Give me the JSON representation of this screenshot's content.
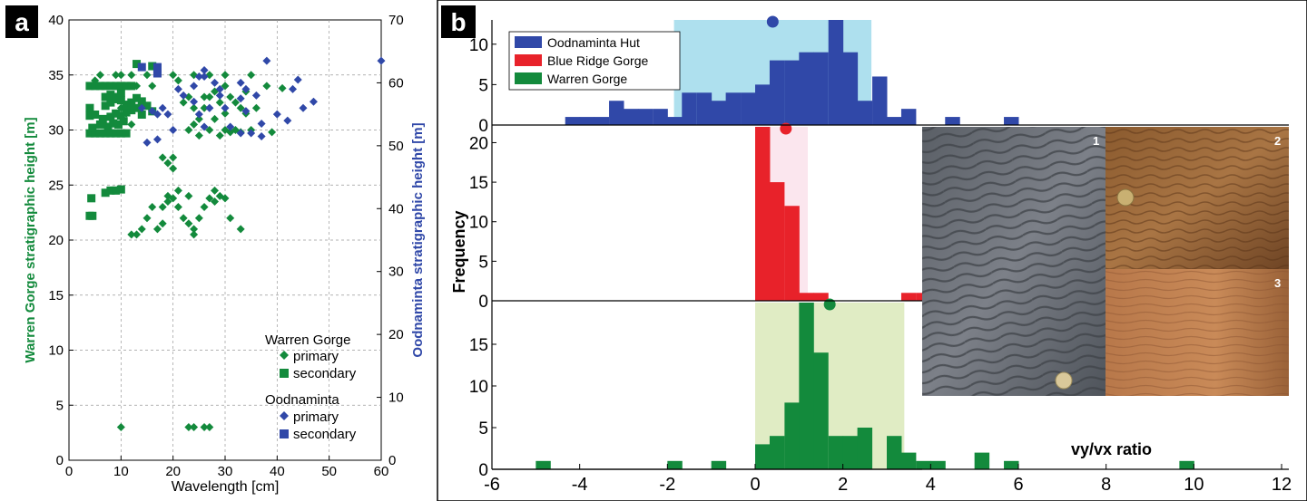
{
  "panel_a": {
    "label": "a",
    "xlabel": "Wavelength [cm]",
    "ylabel_left": "Warren Gorge stratigraphic height [m]",
    "ylabel_right": "Oodnaminta stratigraphic height [m]",
    "xticks": [
      "0",
      "10",
      "20",
      "30",
      "40",
      "50",
      "60"
    ],
    "yticks_left": [
      "0",
      "5",
      "10",
      "15",
      "20",
      "25",
      "30",
      "35",
      "40"
    ],
    "yticks_right": [
      "0",
      "10",
      "20",
      "30",
      "40",
      "50",
      "60",
      "70"
    ],
    "legend": {
      "group1": "Warren Gorge",
      "group2": "Oodnaminta",
      "primary": "primary",
      "secondary": "secondary"
    }
  },
  "panel_b": {
    "label": "b",
    "ylabel": "Frequency",
    "xlabel": "vy/vx ratio",
    "xticks": [
      "-6",
      "-4",
      "-2",
      "0",
      "2",
      "4",
      "6",
      "8",
      "10",
      "12"
    ],
    "legend": [
      "Oodnaminta Hut",
      "Blue Ridge Gorge",
      "Warren Gorge"
    ],
    "photo_labels": [
      "1",
      "2",
      "3"
    ]
  },
  "colors": {
    "green": "#138a3c",
    "blue": "#3048a8",
    "red": "#e8222a",
    "light_blue": "#aee0ee",
    "light_pink": "#fbe6ee",
    "light_green": "#e0ecc4"
  },
  "chart_data": [
    {
      "type": "scatter",
      "xlabel": "Wavelength [cm]",
      "ylabel": "Warren Gorge stratigraphic height [m]",
      "y2label": "Oodnaminta stratigraphic height [m]",
      "xlim": [
        0,
        60
      ],
      "ylim": [
        0,
        40
      ],
      "y2lim": [
        0,
        70
      ],
      "grid": true,
      "legend_position": "bottom-right",
      "series": [
        {
          "name": "primary",
          "group": "Warren Gorge",
          "marker": "diamond",
          "axis": "left",
          "points": [
            [
              10,
              3
            ],
            [
              23,
              3
            ],
            [
              24,
              3
            ],
            [
              26,
              3
            ],
            [
              27,
              3
            ],
            [
              12,
              20.5
            ],
            [
              13,
              20.5
            ],
            [
              14,
              21
            ],
            [
              17,
              21
            ],
            [
              18,
              21.5
            ],
            [
              15,
              22
            ],
            [
              16,
              23
            ],
            [
              18,
              23
            ],
            [
              19,
              23.5
            ],
            [
              20,
              23.8
            ],
            [
              21,
              23
            ],
            [
              22,
              22
            ],
            [
              23,
              21.5
            ],
            [
              24,
              21
            ],
            [
              24,
              20.5
            ],
            [
              25,
              22
            ],
            [
              26,
              23
            ],
            [
              28,
              23.5
            ],
            [
              29,
              24
            ],
            [
              30,
              23.8
            ],
            [
              31,
              22
            ],
            [
              33,
              21
            ],
            [
              19,
              24
            ],
            [
              21,
              24.5
            ],
            [
              23,
              24
            ],
            [
              27,
              23.8
            ],
            [
              28,
              24.5
            ],
            [
              18,
              27.5
            ],
            [
              19,
              27
            ],
            [
              20,
              26.5
            ],
            [
              20,
              27.5
            ],
            [
              23,
              30
            ],
            [
              24,
              30.5
            ],
            [
              25,
              29.5
            ],
            [
              27,
              30
            ],
            [
              28,
              31
            ],
            [
              29,
              29.5
            ],
            [
              30,
              30
            ],
            [
              31,
              29.8
            ],
            [
              32,
              30
            ],
            [
              33,
              29.8
            ],
            [
              35,
              30
            ],
            [
              39,
              29.8
            ],
            [
              25,
              31
            ],
            [
              26,
              32
            ],
            [
              27,
              33
            ],
            [
              29,
              32.5
            ],
            [
              30,
              31.5
            ],
            [
              31,
              33
            ],
            [
              33,
              32
            ],
            [
              34,
              31.5
            ],
            [
              22,
              32.5
            ],
            [
              23,
              33
            ],
            [
              24,
              32
            ],
            [
              26,
              33
            ],
            [
              28,
              33.5
            ],
            [
              30,
              34
            ],
            [
              32,
              32.5
            ],
            [
              34,
              33.5
            ],
            [
              36,
              32
            ],
            [
              38,
              34
            ],
            [
              41,
              33.8
            ],
            [
              35,
              35
            ],
            [
              27,
              35
            ],
            [
              30,
              35
            ],
            [
              24,
              35
            ],
            [
              21,
              34.5
            ],
            [
              20,
              35
            ],
            [
              16,
              34
            ],
            [
              15,
              35
            ],
            [
              13,
              34
            ],
            [
              12,
              35
            ],
            [
              10,
              35
            ],
            [
              9,
              35
            ],
            [
              8,
              34
            ],
            [
              6,
              35
            ],
            [
              5,
              34.5
            ],
            [
              10,
              32
            ],
            [
              11,
              31.5
            ],
            [
              12,
              30.5
            ]
          ]
        },
        {
          "name": "secondary",
          "group": "Warren Gorge",
          "marker": "square",
          "axis": "left",
          "points": [
            [
              4,
              22.2
            ],
            [
              4.5,
              22.2
            ],
            [
              4.3,
              23.8
            ],
            [
              7,
              24.3
            ],
            [
              8,
              24.5
            ],
            [
              9,
              24.5
            ],
            [
              10,
              24.6
            ],
            [
              4,
              29.7
            ],
            [
              5,
              29.7
            ],
            [
              6,
              29.7
            ],
            [
              7,
              29.7
            ],
            [
              8,
              29.7
            ],
            [
              9,
              29.7
            ],
            [
              10,
              29.7
            ],
            [
              11,
              29.7
            ],
            [
              4.5,
              30.2
            ],
            [
              6,
              30.5
            ],
            [
              7.5,
              30.3
            ],
            [
              8.5,
              30.6
            ],
            [
              9.5,
              30.5
            ],
            [
              10.5,
              30.8
            ],
            [
              6.5,
              31
            ],
            [
              8,
              31.2
            ],
            [
              9,
              31.5
            ],
            [
              10,
              31.3
            ],
            [
              11,
              31.6
            ],
            [
              12,
              31.8
            ],
            [
              13,
              32
            ],
            [
              14,
              31.4
            ],
            [
              4,
              31.3
            ],
            [
              5,
              31.4
            ],
            [
              4,
              32
            ],
            [
              7,
              32.2
            ],
            [
              8,
              32.5
            ],
            [
              9,
              32.8
            ],
            [
              10,
              32.7
            ],
            [
              11,
              32.3
            ],
            [
              12,
              32.5
            ],
            [
              13,
              32.9
            ],
            [
              14,
              32.6
            ],
            [
              15,
              32.2
            ],
            [
              16,
              31.7
            ],
            [
              7,
              33
            ],
            [
              8,
              33.2
            ],
            [
              9,
              33
            ],
            [
              10,
              33.4
            ],
            [
              4,
              34
            ],
            [
              5,
              34
            ],
            [
              6,
              34
            ],
            [
              7,
              34
            ],
            [
              8,
              34
            ],
            [
              9,
              34
            ],
            [
              10,
              34
            ],
            [
              11,
              34
            ],
            [
              12,
              34
            ],
            [
              16,
              35.8
            ],
            [
              17,
              35.6
            ],
            [
              13,
              36
            ],
            [
              17,
              35.3
            ]
          ]
        },
        {
          "name": "primary",
          "group": "Oodnaminta",
          "marker": "diamond",
          "axis": "right",
          "points": [
            [
              38,
              63.5
            ],
            [
              44,
              60.5
            ],
            [
              47,
              57
            ],
            [
              43,
              59
            ],
            [
              34,
              59
            ],
            [
              33,
              57.5
            ],
            [
              34,
              55.5
            ],
            [
              33,
              60
            ],
            [
              36,
              58
            ],
            [
              37,
              53.5
            ],
            [
              40,
              55
            ],
            [
              42,
              54
            ],
            [
              35,
              52
            ],
            [
              31,
              53
            ],
            [
              25,
              55
            ],
            [
              27,
              56
            ],
            [
              29,
              58
            ],
            [
              30,
              56
            ],
            [
              24,
              57
            ],
            [
              24,
              59.5
            ],
            [
              25,
              61
            ],
            [
              26,
              62
            ],
            [
              26,
              61
            ],
            [
              28,
              60
            ],
            [
              29,
              59
            ],
            [
              21,
              59
            ],
            [
              19,
              55
            ],
            [
              18,
              56
            ],
            [
              16,
              55.5
            ],
            [
              17,
              55
            ],
            [
              14,
              56
            ],
            [
              22,
              58
            ],
            [
              26,
              53
            ],
            [
              20,
              52.5
            ],
            [
              15,
              50.5
            ],
            [
              17,
              51
            ],
            [
              27,
              56
            ],
            [
              60,
              63.5
            ],
            [
              45,
              56
            ],
            [
              37,
              51.5
            ],
            [
              33,
              52
            ]
          ]
        },
        {
          "name": "secondary",
          "group": "Oodnaminta",
          "marker": "square",
          "axis": "right",
          "points": [
            [
              17,
              62.5
            ],
            [
              17,
              61.5
            ],
            [
              14,
              62.5
            ]
          ]
        }
      ]
    },
    {
      "type": "bar",
      "subtype": "histogram",
      "xlabel": "vy/vx ratio",
      "ylabel": "Frequency",
      "xlim": [
        -6,
        12
      ],
      "bin_width": 0.33,
      "legend_position": "top-left",
      "series": [
        {
          "name": "Oodnaminta Hut",
          "ylim": [
            0,
            13
          ],
          "yticks": [
            0,
            5,
            10
          ],
          "mean": 0.4,
          "shaded_range": [
            -1.85,
            2.65
          ],
          "bins": [
            [
              -4.33,
              1
            ],
            [
              -4.0,
              1
            ],
            [
              -3.67,
              1
            ],
            [
              -3.33,
              3
            ],
            [
              -3.0,
              2
            ],
            [
              -2.67,
              2
            ],
            [
              -2.33,
              2
            ],
            [
              -2.0,
              1
            ],
            [
              -1.67,
              4
            ],
            [
              -1.33,
              4
            ],
            [
              -1.0,
              3
            ],
            [
              -0.67,
              4
            ],
            [
              -0.33,
              4
            ],
            [
              0.0,
              5
            ],
            [
              0.33,
              8
            ],
            [
              0.67,
              8
            ],
            [
              1.0,
              9
            ],
            [
              1.33,
              9
            ],
            [
              1.67,
              13
            ],
            [
              2.0,
              9
            ],
            [
              2.33,
              3
            ],
            [
              2.67,
              6
            ],
            [
              3.0,
              1
            ],
            [
              3.33,
              2
            ],
            [
              4.33,
              1
            ],
            [
              5.67,
              1
            ]
          ]
        },
        {
          "name": "Blue Ridge Gorge",
          "ylim": [
            0,
            22
          ],
          "yticks": [
            0,
            5,
            10,
            15,
            20
          ],
          "mean": 0.7,
          "shaded_range": [
            0.0,
            1.2
          ],
          "bins": [
            [
              0.0,
              22
            ],
            [
              0.33,
              15
            ],
            [
              0.67,
              12
            ],
            [
              1.0,
              1
            ],
            [
              1.33,
              1
            ],
            [
              3.33,
              0
            ],
            [
              3.33,
              1
            ],
            [
              3.67,
              1
            ]
          ]
        },
        {
          "name": "Warren Gorge",
          "ylim": [
            0,
            20
          ],
          "yticks": [
            0,
            5,
            10,
            15
          ],
          "mean": 1.7,
          "shaded_range": [
            0.0,
            3.4
          ],
          "bins": [
            [
              -5.0,
              1
            ],
            [
              -2.0,
              1
            ],
            [
              -1.0,
              1
            ],
            [
              0.0,
              3
            ],
            [
              0.33,
              4
            ],
            [
              0.67,
              8
            ],
            [
              1.0,
              20
            ],
            [
              1.33,
              14
            ],
            [
              1.67,
              4
            ],
            [
              2.0,
              4
            ],
            [
              2.33,
              5
            ],
            [
              2.67,
              0
            ],
            [
              3.0,
              4
            ],
            [
              3.33,
              2
            ],
            [
              3.67,
              1
            ],
            [
              4.0,
              1
            ],
            [
              5.0,
              2
            ],
            [
              5.67,
              1
            ],
            [
              9.67,
              1
            ]
          ]
        }
      ]
    }
  ]
}
